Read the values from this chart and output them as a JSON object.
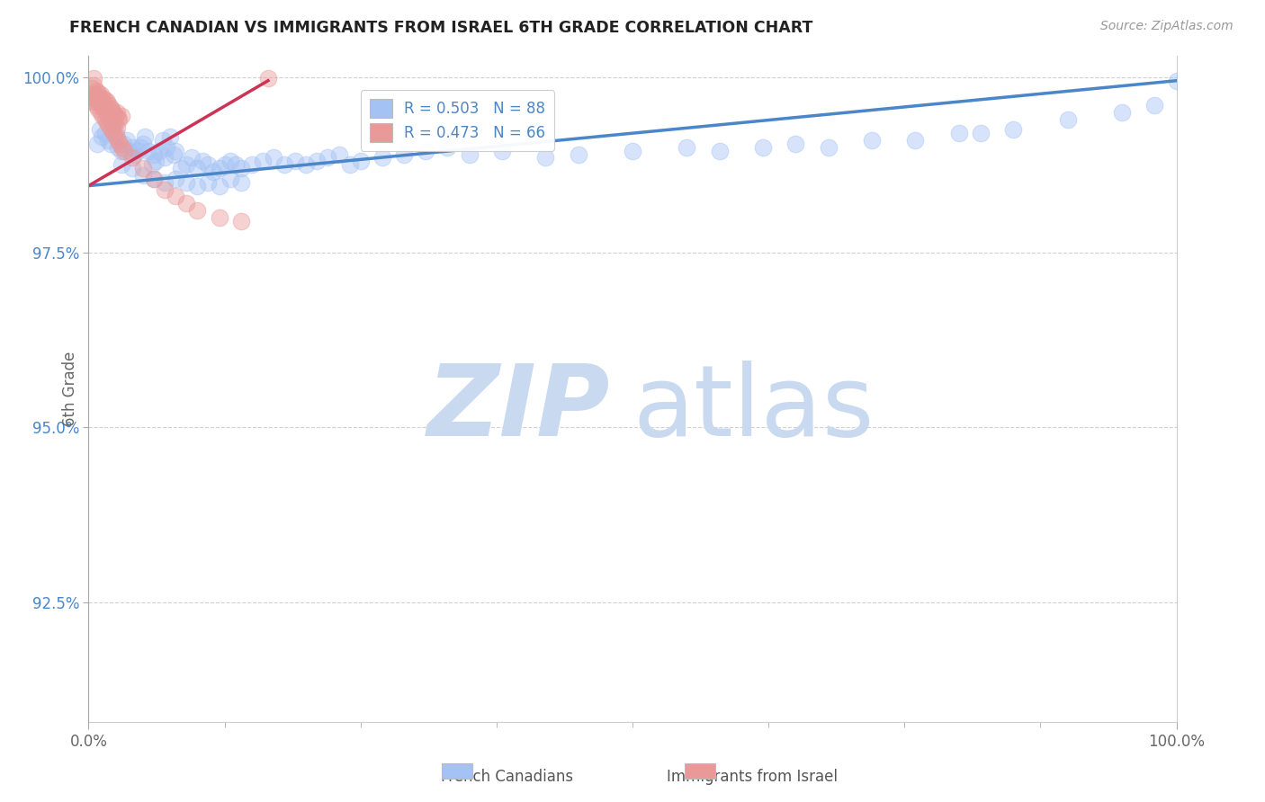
{
  "title": "FRENCH CANADIAN VS IMMIGRANTS FROM ISRAEL 6TH GRADE CORRELATION CHART",
  "source": "Source: ZipAtlas.com",
  "ylabel": "6th Grade",
  "xlim": [
    0.0,
    1.0
  ],
  "ylim": [
    0.908,
    1.003
  ],
  "yticks": [
    0.925,
    0.95,
    0.975,
    1.0
  ],
  "ytick_labels": [
    "92.5%",
    "95.0%",
    "97.5%",
    "100.0%"
  ],
  "xticks": [
    0.0,
    1.0
  ],
  "xtick_labels": [
    "0.0%",
    "100.0%"
  ],
  "legend_r1": "R = 0.503   N = 88",
  "legend_r2": "R = 0.473   N = 66",
  "blue_color": "#a4c2f4",
  "pink_color": "#ea9999",
  "line_blue": "#4a86c8",
  "line_pink": "#cc3355",
  "watermark_zip_color": "#c9d9f0",
  "watermark_atlas_color": "#c9d9f0",
  "blue_line_x0": 0.0,
  "blue_line_x1": 1.0,
  "blue_line_y0": 0.9845,
  "blue_line_y1": 0.9995,
  "pink_line_x0": 0.0,
  "pink_line_x1": 0.165,
  "pink_line_y0": 0.9845,
  "pink_line_y1": 0.9995,
  "blue_scatter_x": [
    0.008,
    0.01,
    0.012,
    0.015,
    0.018,
    0.02,
    0.022,
    0.025,
    0.027,
    0.03,
    0.032,
    0.035,
    0.037,
    0.04,
    0.042,
    0.045,
    0.048,
    0.05,
    0.052,
    0.055,
    0.058,
    0.06,
    0.062,
    0.065,
    0.068,
    0.07,
    0.072,
    0.075,
    0.078,
    0.08,
    0.085,
    0.09,
    0.095,
    0.1,
    0.105,
    0.11,
    0.115,
    0.12,
    0.125,
    0.13,
    0.135,
    0.14,
    0.15,
    0.16,
    0.17,
    0.18,
    0.19,
    0.2,
    0.21,
    0.22,
    0.23,
    0.24,
    0.25,
    0.27,
    0.29,
    0.31,
    0.33,
    0.35,
    0.38,
    0.42,
    0.45,
    0.5,
    0.55,
    0.58,
    0.62,
    0.65,
    0.68,
    0.72,
    0.76,
    0.8,
    0.82,
    0.85,
    0.9,
    0.95,
    0.98,
    1.0,
    0.03,
    0.04,
    0.05,
    0.06,
    0.07,
    0.08,
    0.09,
    0.1,
    0.11,
    0.12,
    0.13,
    0.14
  ],
  "blue_scatter_y": [
    0.9905,
    0.9925,
    0.9915,
    0.992,
    0.991,
    0.9905,
    0.993,
    0.992,
    0.99,
    0.9895,
    0.9905,
    0.991,
    0.9895,
    0.99,
    0.989,
    0.9895,
    0.99,
    0.9905,
    0.9915,
    0.9895,
    0.9875,
    0.989,
    0.988,
    0.9895,
    0.991,
    0.9885,
    0.99,
    0.9915,
    0.989,
    0.9895,
    0.987,
    0.9875,
    0.9885,
    0.987,
    0.988,
    0.9875,
    0.9865,
    0.987,
    0.9875,
    0.988,
    0.9875,
    0.987,
    0.9875,
    0.988,
    0.9885,
    0.9875,
    0.988,
    0.9875,
    0.988,
    0.9885,
    0.989,
    0.9875,
    0.988,
    0.9885,
    0.989,
    0.9895,
    0.99,
    0.989,
    0.9895,
    0.9885,
    0.989,
    0.9895,
    0.99,
    0.9895,
    0.99,
    0.9905,
    0.99,
    0.991,
    0.991,
    0.992,
    0.992,
    0.9925,
    0.994,
    0.995,
    0.996,
    0.9995,
    0.9875,
    0.987,
    0.986,
    0.9855,
    0.985,
    0.9855,
    0.985,
    0.9845,
    0.985,
    0.9845,
    0.9855,
    0.985
  ],
  "pink_scatter_x": [
    0.003,
    0.005,
    0.007,
    0.008,
    0.01,
    0.012,
    0.014,
    0.016,
    0.018,
    0.02,
    0.022,
    0.024,
    0.026,
    0.028,
    0.03,
    0.003,
    0.005,
    0.007,
    0.009,
    0.011,
    0.013,
    0.015,
    0.017,
    0.019,
    0.021,
    0.023,
    0.025,
    0.027,
    0.004,
    0.006,
    0.008,
    0.01,
    0.012,
    0.014,
    0.016,
    0.018,
    0.02,
    0.022,
    0.024,
    0.026,
    0.005,
    0.007,
    0.009,
    0.011,
    0.013,
    0.015,
    0.017,
    0.019,
    0.021,
    0.023,
    0.025,
    0.027,
    0.029,
    0.031,
    0.033,
    0.04,
    0.05,
    0.06,
    0.07,
    0.08,
    0.09,
    0.1,
    0.12,
    0.14,
    0.005,
    0.165
  ],
  "pink_scatter_y": [
    0.997,
    0.9975,
    0.9965,
    0.9975,
    0.997,
    0.996,
    0.9965,
    0.996,
    0.9955,
    0.9955,
    0.995,
    0.9945,
    0.995,
    0.994,
    0.9945,
    0.9985,
    0.9988,
    0.998,
    0.9978,
    0.9975,
    0.997,
    0.9968,
    0.9965,
    0.996,
    0.9955,
    0.995,
    0.9945,
    0.9942,
    0.9975,
    0.997,
    0.9968,
    0.9965,
    0.996,
    0.9955,
    0.995,
    0.9945,
    0.994,
    0.9935,
    0.993,
    0.9928,
    0.9965,
    0.996,
    0.9955,
    0.995,
    0.9945,
    0.994,
    0.9935,
    0.993,
    0.9925,
    0.992,
    0.9915,
    0.991,
    0.9905,
    0.99,
    0.9895,
    0.9885,
    0.987,
    0.9855,
    0.984,
    0.983,
    0.982,
    0.981,
    0.98,
    0.9795,
    0.9998,
    0.9998
  ],
  "marker_size": 180,
  "alpha_scatter": 0.45
}
